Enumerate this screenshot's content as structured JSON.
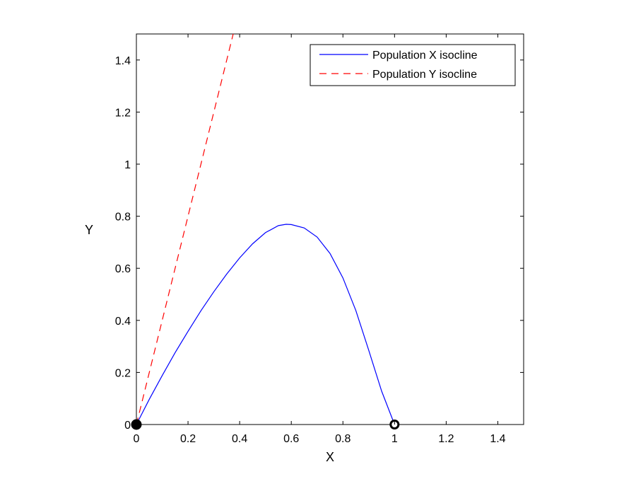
{
  "chart_data": {
    "type": "line",
    "xlabel": "X",
    "ylabel": "Y",
    "xlim": [
      0,
      1.5
    ],
    "ylim": [
      0,
      1.5
    ],
    "xticks": [
      "0",
      "0.2",
      "0.4",
      "0.6",
      "0.8",
      "1",
      "1.2",
      "1.4"
    ],
    "yticks": [
      "0",
      "0.2",
      "0.4",
      "0.6",
      "0.8",
      "1",
      "1.2",
      "1.4"
    ],
    "grid": false,
    "legend_position": "top-right",
    "series": [
      {
        "name": "Population X isocline",
        "color": "#0000ff",
        "style": "solid",
        "x": [
          0,
          0.05,
          0.1,
          0.15,
          0.2,
          0.25,
          0.3,
          0.35,
          0.4,
          0.45,
          0.5,
          0.55,
          0.58,
          0.6,
          0.65,
          0.7,
          0.75,
          0.8,
          0.85,
          0.9,
          0.95,
          1.0
        ],
        "y": [
          0,
          0.097,
          0.188,
          0.276,
          0.358,
          0.437,
          0.51,
          0.578,
          0.64,
          0.694,
          0.737,
          0.764,
          0.769,
          0.768,
          0.755,
          0.72,
          0.657,
          0.563,
          0.438,
          0.285,
          0.128,
          0
        ]
      },
      {
        "name": "Population Y isocline",
        "color": "#ff0000",
        "style": "dashed",
        "x": [
          0,
          0.375
        ],
        "y": [
          0,
          1.5
        ]
      }
    ],
    "equilibria": [
      {
        "x": 0,
        "y": 0,
        "style": "filled",
        "color": "#000000"
      },
      {
        "x": 1,
        "y": 0,
        "style": "open",
        "color": "#000000"
      }
    ]
  }
}
